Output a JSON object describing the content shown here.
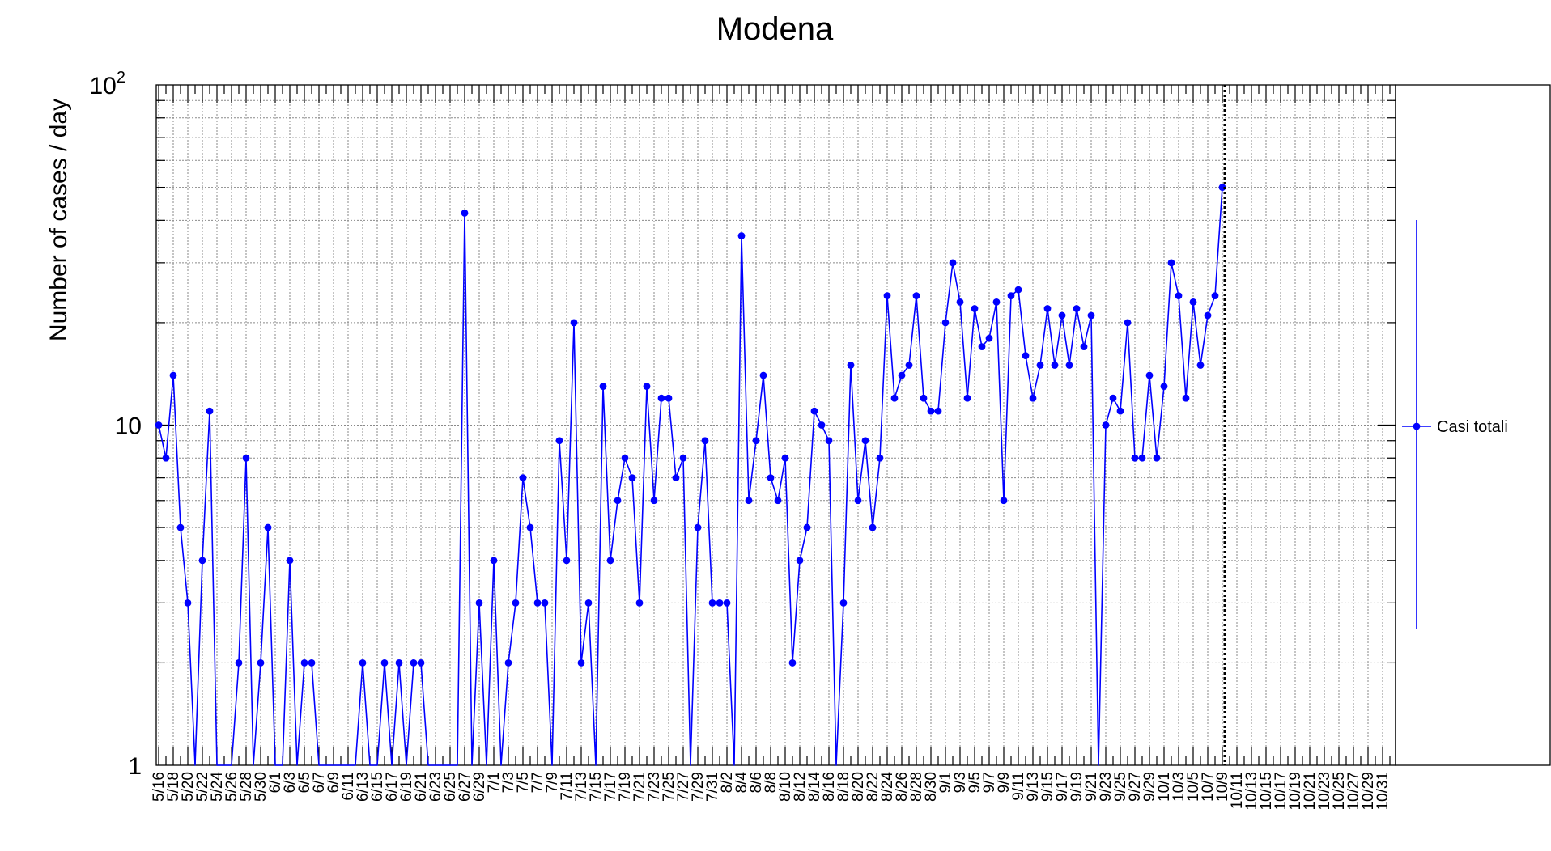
{
  "chart_data": {
    "type": "line",
    "title": "Modena",
    "xlabel": "",
    "ylabel": "Number of cases / day",
    "yscale": "log",
    "ylim": [
      1,
      100
    ],
    "y_ticks": [
      {
        "value": 1,
        "base": "1",
        "exp": ""
      },
      {
        "value": 10,
        "base": "10",
        "exp": ""
      },
      {
        "value": 100,
        "base": "10",
        "exp": "2"
      }
    ],
    "grid": true,
    "legend_position": "right",
    "x_dates": [
      "5/16",
      "5/17",
      "5/18",
      "5/19",
      "5/20",
      "5/21",
      "5/22",
      "5/23",
      "5/24",
      "5/25",
      "5/26",
      "5/27",
      "5/28",
      "5/29",
      "5/30",
      "5/31",
      "6/1",
      "6/2",
      "6/3",
      "6/4",
      "6/5",
      "6/6",
      "6/7",
      "6/8",
      "6/9",
      "6/10",
      "6/11",
      "6/12",
      "6/13",
      "6/14",
      "6/15",
      "6/16",
      "6/17",
      "6/18",
      "6/19",
      "6/20",
      "6/21",
      "6/22",
      "6/23",
      "6/24",
      "6/25",
      "6/26",
      "6/27",
      "6/28",
      "6/29",
      "6/30",
      "7/1",
      "7/2",
      "7/3",
      "7/4",
      "7/5",
      "7/6",
      "7/7",
      "7/8",
      "7/9",
      "7/10",
      "7/11",
      "7/12",
      "7/13",
      "7/14",
      "7/15",
      "7/16",
      "7/17",
      "7/18",
      "7/19",
      "7/20",
      "7/21",
      "7/22",
      "7/23",
      "7/24",
      "7/25",
      "7/26",
      "7/27",
      "7/28",
      "7/29",
      "7/30",
      "7/31",
      "8/1",
      "8/2",
      "8/3",
      "8/4",
      "8/5",
      "8/6",
      "8/7",
      "8/8",
      "8/9",
      "8/10",
      "8/11",
      "8/12",
      "8/13",
      "8/14",
      "8/15",
      "8/16",
      "8/17",
      "8/18",
      "8/19",
      "8/20",
      "8/21",
      "8/22",
      "8/23",
      "8/24",
      "8/25",
      "8/26",
      "8/27",
      "8/28",
      "8/29",
      "8/30",
      "8/31",
      "9/1",
      "9/2",
      "9/3",
      "9/4",
      "9/5",
      "9/6",
      "9/7",
      "9/8",
      "9/9",
      "9/10",
      "9/11",
      "9/12",
      "9/13",
      "9/14",
      "9/15",
      "9/16",
      "9/17",
      "9/18",
      "9/19",
      "9/20",
      "9/21",
      "9/22",
      "9/23",
      "9/24",
      "9/25",
      "9/26",
      "9/27",
      "9/28",
      "9/29",
      "9/30",
      "10/1",
      "10/2",
      "10/3",
      "10/4",
      "10/5",
      "10/6",
      "10/7",
      "10/8",
      "10/9",
      "10/10",
      "10/11",
      "10/12",
      "10/13",
      "10/14",
      "10/15",
      "10/16",
      "10/17",
      "10/18",
      "10/19",
      "10/20",
      "10/21",
      "10/22",
      "10/23",
      "10/24",
      "10/25",
      "10/26",
      "10/27",
      "10/28",
      "10/29",
      "10/30",
      "10/31",
      "11/1",
      "11/2",
      "11/3"
    ],
    "x_tick_labels": [
      "5/16",
      "5/18",
      "5/20",
      "5/22",
      "5/24",
      "5/26",
      "5/28",
      "5/30",
      "6/1",
      "6/3",
      "6/5",
      "6/7",
      "6/9",
      "6/11",
      "6/13",
      "6/15",
      "6/17",
      "6/19",
      "6/21",
      "6/23",
      "6/25",
      "6/27",
      "6/29",
      "7/1",
      "7/3",
      "7/5",
      "7/7",
      "7/9",
      "7/11",
      "7/13",
      "7/15",
      "7/17",
      "7/19",
      "7/21",
      "7/23",
      "7/25",
      "7/27",
      "7/29",
      "7/31",
      "8/2",
      "8/4",
      "8/6",
      "8/8",
      "8/10",
      "8/12",
      "8/14",
      "8/16",
      "8/18",
      "8/20",
      "8/22",
      "8/24",
      "8/26",
      "8/28",
      "8/30",
      "9/1",
      "9/3",
      "9/5",
      "9/7",
      "9/9",
      "9/11",
      "9/13",
      "9/15",
      "9/17",
      "9/19",
      "9/21",
      "9/23",
      "9/25",
      "9/27",
      "9/29",
      "10/1",
      "10/3",
      "10/5",
      "10/7",
      "10/9",
      "10/11",
      "10/13",
      "10/15",
      "10/17",
      "10/19",
      "10/21",
      "10/23",
      "10/25",
      "10/27",
      "10/29",
      "10/31"
    ],
    "x_range": [
      "5/16",
      "11/3"
    ],
    "today_marker": "10/9",
    "series": [
      {
        "name": "Casi totali",
        "color": "#0000ff",
        "values": [
          10,
          8,
          14,
          5,
          3,
          0,
          4,
          11,
          0,
          0,
          0,
          2,
          8,
          0,
          2,
          5,
          0,
          0,
          4,
          0,
          2,
          2,
          0,
          0,
          0,
          0,
          0,
          0,
          2,
          0,
          0,
          2,
          0,
          2,
          0,
          2,
          2,
          0,
          0,
          0,
          0,
          0,
          42,
          0,
          3,
          0,
          4,
          0,
          2,
          3,
          7,
          5,
          3,
          3,
          0,
          9,
          4,
          20,
          2,
          3,
          0,
          13,
          4,
          6,
          8,
          7,
          3,
          13,
          6,
          12,
          12,
          7,
          8,
          0,
          5,
          9,
          3,
          3,
          3,
          0,
          36,
          6,
          9,
          14,
          7,
          6,
          8,
          2,
          4,
          5,
          11,
          10,
          9,
          0,
          3,
          15,
          6,
          9,
          5,
          8,
          24,
          12,
          14,
          15,
          24,
          12,
          11,
          11,
          20,
          30,
          23,
          12,
          22,
          17,
          18,
          23,
          6,
          24,
          25,
          16,
          12,
          15,
          22,
          15,
          21,
          15,
          22,
          17,
          21,
          0,
          10,
          12,
          11,
          20,
          8,
          8,
          14,
          8,
          13,
          30,
          24,
          12,
          23,
          15,
          21,
          24,
          50
        ]
      }
    ]
  }
}
